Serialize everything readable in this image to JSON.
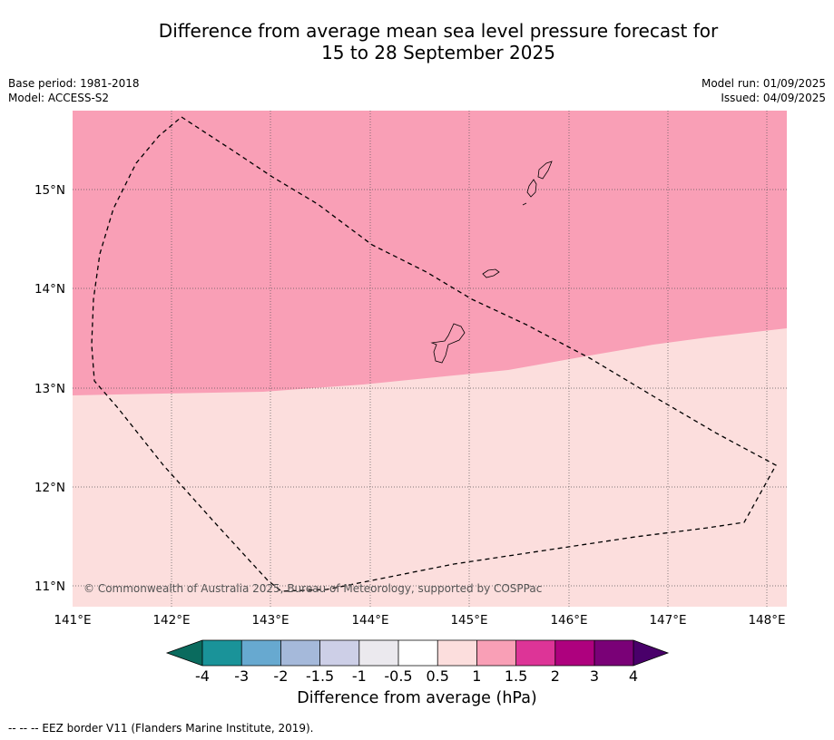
{
  "title_line1": "Difference from average mean sea level pressure forecast for",
  "title_line2": "15 to 28 September 2025",
  "meta": {
    "base_period": "Base period: 1981-2018",
    "model": "Model: ACCESS-S2",
    "model_run": "Model run: 01/09/2025",
    "issued": "Issued: 04/09/2025"
  },
  "map": {
    "lat_labels": [
      "15°N",
      "14°N",
      "13°N",
      "12°N",
      "11°N"
    ],
    "lon_labels": [
      "141°E",
      "142°E",
      "143°E",
      "144°E",
      "145°E",
      "146°E",
      "147°E",
      "148°E"
    ],
    "copyright": "© Commonwealth of Australia 2025, Bureau of Meteorology, supported by COSPPac",
    "region_values_hPa": {
      "north": "1 to 1.5",
      "south": "0.5 to 1"
    }
  },
  "colorbar": {
    "label": "Difference from average (hPa)",
    "ticks": [
      "-4",
      "-3",
      "-2",
      "-1.5",
      "-1",
      "-0.5",
      "0.5",
      "1",
      "1.5",
      "2",
      "3",
      "4"
    ],
    "colors": [
      "#0a6b5e",
      "#1a9399",
      "#67a9d0",
      "#a5b9da",
      "#cdcfe7",
      "#ebe9ee",
      "#ffffff",
      "#fcdedd",
      "#f99fb6",
      "#dd3497",
      "#ae017e",
      "#7a0177",
      "#49006a"
    ]
  },
  "footer": "--  --  -- EEZ border V11 (Flanders Marine Institute, 2019)."
}
